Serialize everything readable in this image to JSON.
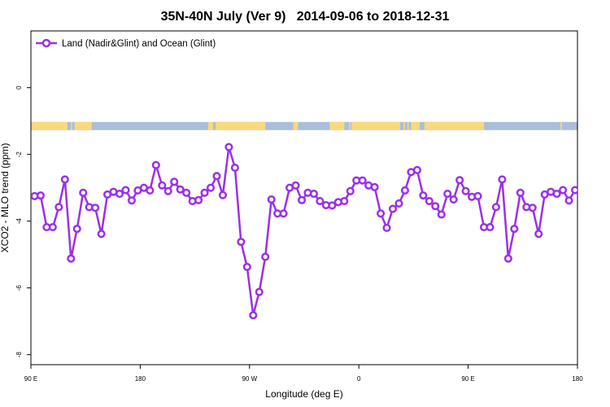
{
  "chart_data": {
    "type": "line",
    "title": "35N-40N July (Ver 9)   2014-09-06 to 2018-12-31",
    "xlabel": "Longitude (deg E)",
    "ylabel": "XCO2 - MLO trend (ppm)",
    "xlim": [
      90,
      540
    ],
    "ylim": [
      -8.3,
      1.7
    ],
    "x_ticks": [
      {
        "value": 90,
        "label": "90 E"
      },
      {
        "value": 180,
        "label": "180"
      },
      {
        "value": 270,
        "label": "90 W"
      },
      {
        "value": 360,
        "label": "0"
      },
      {
        "value": 450,
        "label": "90 E"
      },
      {
        "value": 540,
        "label": "180"
      }
    ],
    "y_ticks": [
      {
        "value": 0,
        "label": "0"
      },
      {
        "value": -2,
        "label": "-2"
      },
      {
        "value": -4,
        "label": "-4"
      },
      {
        "value": -6,
        "label": "-6"
      },
      {
        "value": -8,
        "label": "-8"
      }
    ],
    "legend_position": "top-left",
    "land_ocean_bar": {
      "y_center": -1.15,
      "ocean_color": "#a8bedc",
      "land_color": "#fbd97c",
      "land_segments": [
        [
          90,
          120
        ],
        [
          123,
          124
        ],
        [
          126,
          140
        ],
        [
          236,
          240
        ],
        [
          242,
          283
        ],
        [
          306,
          310
        ],
        [
          336,
          348
        ],
        [
          352,
          353
        ],
        [
          354,
          394
        ],
        [
          397,
          398
        ],
        [
          400,
          401
        ],
        [
          403,
          410
        ],
        [
          414,
          463
        ],
        [
          526,
          527
        ]
      ]
    },
    "series": [
      {
        "name": "Land (Nadir&Glint) and Ocean (Glint)",
        "color": "#9b30e8",
        "points": [
          [
            93,
            -3.25
          ],
          [
            98,
            -3.23
          ],
          [
            103,
            -4.18
          ],
          [
            108,
            -4.18
          ],
          [
            113,
            -3.58
          ],
          [
            118,
            -2.75
          ],
          [
            123,
            -5.12
          ],
          [
            128,
            -4.23
          ],
          [
            133,
            -3.15
          ],
          [
            138,
            -3.58
          ],
          [
            143,
            -3.6
          ],
          [
            148,
            -4.38
          ],
          [
            153,
            -3.2
          ],
          [
            158,
            -3.12
          ],
          [
            163,
            -3.18
          ],
          [
            168,
            -3.07
          ],
          [
            173,
            -3.38
          ],
          [
            178,
            -3.08
          ],
          [
            183,
            -3
          ],
          [
            188,
            -3.08
          ],
          [
            193,
            -2.32
          ],
          [
            198,
            -2.93
          ],
          [
            203,
            -3.1
          ],
          [
            208,
            -2.82
          ],
          [
            213,
            -3.05
          ],
          [
            218,
            -3.15
          ],
          [
            223,
            -3.4
          ],
          [
            228,
            -3.37
          ],
          [
            233,
            -3.15
          ],
          [
            238,
            -3
          ],
          [
            243,
            -2.65
          ],
          [
            248,
            -3.22
          ],
          [
            253,
            -1.78
          ],
          [
            258,
            -2.4
          ],
          [
            263,
            -4.62
          ],
          [
            268,
            -5.37
          ],
          [
            273,
            -6.82
          ],
          [
            278,
            -6.12
          ],
          [
            283,
            -5.07
          ],
          [
            288,
            -3.35
          ],
          [
            293,
            -3.77
          ],
          [
            298,
            -3.77
          ],
          [
            303,
            -3
          ],
          [
            308,
            -2.93
          ],
          [
            313,
            -3.37
          ],
          [
            318,
            -3.15
          ],
          [
            323,
            -3.18
          ],
          [
            328,
            -3.4
          ],
          [
            333,
            -3.52
          ],
          [
            338,
            -3.53
          ],
          [
            343,
            -3.43
          ],
          [
            348,
            -3.4
          ],
          [
            353,
            -3.1
          ],
          [
            358,
            -2.78
          ],
          [
            363,
            -2.78
          ],
          [
            368,
            -2.93
          ],
          [
            373,
            -2.98
          ],
          [
            378,
            -3.77
          ],
          [
            383,
            -4.2
          ],
          [
            388,
            -3.63
          ],
          [
            393,
            -3.47
          ],
          [
            398,
            -3.08
          ],
          [
            403,
            -2.53
          ],
          [
            408,
            -2.47
          ],
          [
            413,
            -3.23
          ],
          [
            418,
            -3.4
          ],
          [
            423,
            -3.55
          ],
          [
            428,
            -3.8
          ],
          [
            433,
            -3.18
          ],
          [
            438,
            -3.35
          ],
          [
            443,
            -2.77
          ],
          [
            448,
            -3.1
          ],
          [
            453,
            -3.27
          ],
          [
            458,
            -3.25
          ],
          [
            463,
            -4.18
          ],
          [
            468,
            -4.18
          ],
          [
            473,
            -3.58
          ],
          [
            478,
            -2.75
          ],
          [
            483,
            -5.12
          ],
          [
            488,
            -4.23
          ],
          [
            493,
            -3.15
          ],
          [
            498,
            -3.58
          ],
          [
            503,
            -3.6
          ],
          [
            508,
            -4.38
          ],
          [
            513,
            -3.2
          ],
          [
            518,
            -3.12
          ],
          [
            523,
            -3.18
          ],
          [
            528,
            -3.07
          ],
          [
            533,
            -3.38
          ],
          [
            538,
            -3.07
          ]
        ]
      }
    ]
  }
}
